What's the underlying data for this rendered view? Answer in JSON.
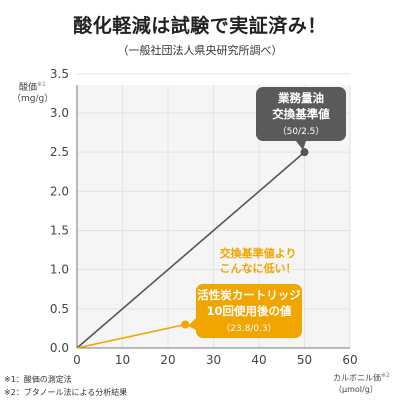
{
  "header": {
    "title": "酸化軽減は試験で実証済み！",
    "subtitle": "（一般社団法人県央研究所調べ）"
  },
  "chart_data": {
    "type": "line",
    "title": "酸化軽減は試験で実証済み！",
    "subtitle": "（一般社団法人県央研究所調べ）",
    "ylabel": "酸価",
    "ylabel_note": "※1",
    "yunit": "（mg/g）",
    "xlabel": "カルボニル価",
    "xlabel_note": "※2",
    "xunit": "（μmol/g）",
    "xlim": [
      0,
      60
    ],
    "ylim": [
      0,
      3.5
    ],
    "xticks": [
      "0",
      "10",
      "20",
      "30",
      "40",
      "50",
      "60"
    ],
    "yticks": [
      "0.0",
      "0.5",
      "1.0",
      "1.5",
      "2.0",
      "2.5",
      "3.0",
      "3.5"
    ],
    "grid": true,
    "series": [
      {
        "color": "#555555",
        "points": [
          [
            0,
            0
          ],
          [
            50,
            2.5
          ]
        ]
      },
      {
        "color": "#f0a500",
        "points": [
          [
            0,
            0
          ],
          [
            23.8,
            0.3
          ]
        ]
      }
    ],
    "callouts": [
      {
        "lines": [
          "業務量油",
          "交換基準値",
          "（50/2.5）"
        ],
        "color": "#5a5a5a",
        "text_color": "#ffffff"
      },
      {
        "lines": [
          "活性炭カートリッジ",
          "10回使用後の値",
          "（23.8/0.3）"
        ],
        "color": "#f0a500",
        "text_color": "#ffffff"
      }
    ],
    "annotation": {
      "lines": [
        "交換基準値より",
        "こんなに低い！"
      ],
      "color": "#f0a500"
    }
  },
  "footnotes": [
    "※1：酸価の測定法",
    "※2：ブタノール法による分析結果"
  ]
}
